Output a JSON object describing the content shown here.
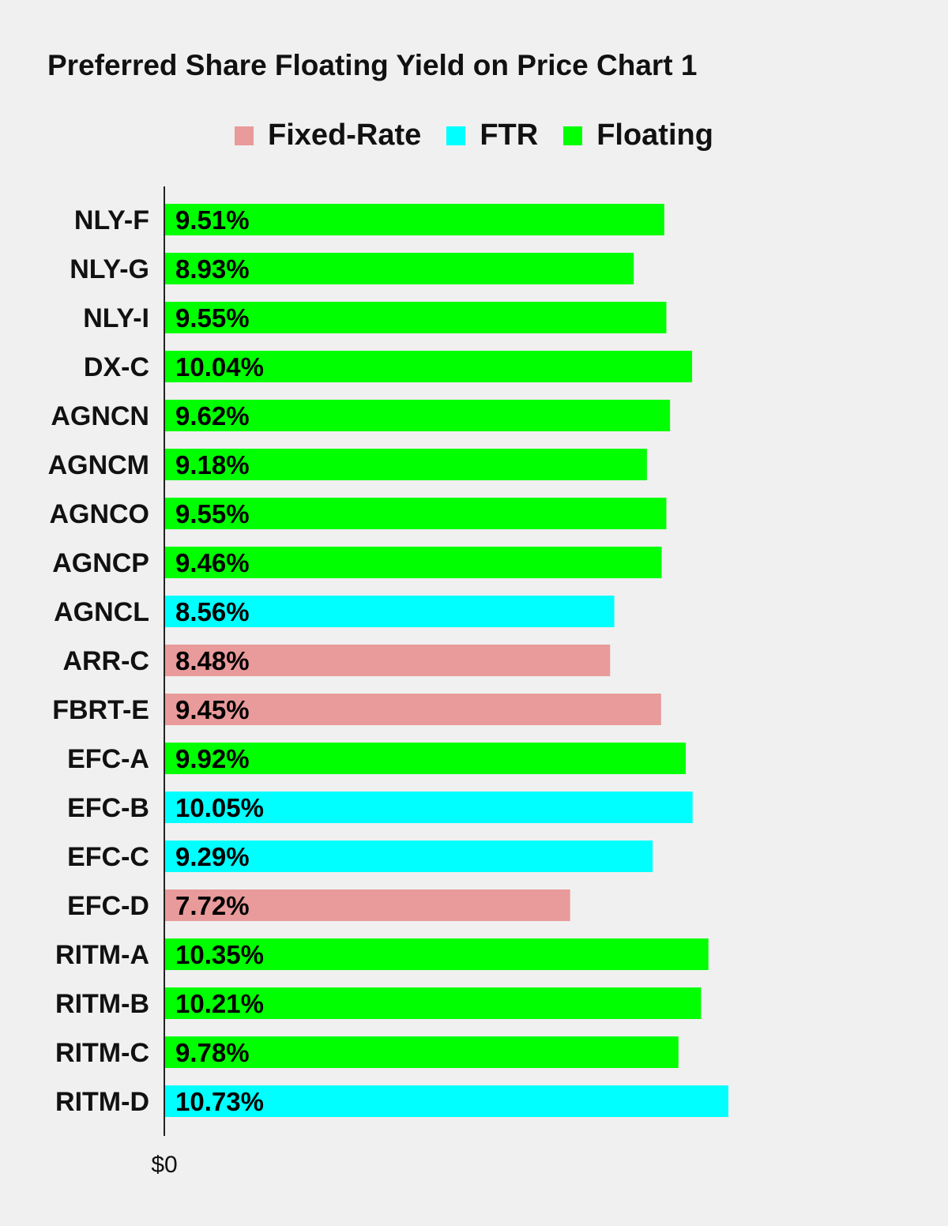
{
  "chart_data": {
    "type": "bar",
    "orientation": "horizontal",
    "title": "Preferred Share Floating Yield on Price Chart 1",
    "legend": {
      "placement": "top-center",
      "entries": [
        {
          "name": "Fixed-Rate",
          "color": "#e99a9a"
        },
        {
          "name": "FTR",
          "color": "#00ffff"
        },
        {
          "name": "Floating",
          "color": "#00ff00"
        }
      ]
    },
    "categories": [
      "NLY-F",
      "NLY-G",
      "NLY-I",
      "DX-C",
      "AGNCN",
      "AGNCM",
      "AGNCO",
      "AGNCP",
      "AGNCL",
      "ARR-C",
      "FBRT-E",
      "EFC-A",
      "EFC-B",
      "EFC-C",
      "EFC-D",
      "RITM-A",
      "RITM-B",
      "RITM-C",
      "RITM-D"
    ],
    "values": [
      9.51,
      8.93,
      9.55,
      10.04,
      9.62,
      9.18,
      9.55,
      9.46,
      8.56,
      8.48,
      9.45,
      9.92,
      10.05,
      9.29,
      7.72,
      10.35,
      10.21,
      9.78,
      10.73
    ],
    "value_labels": [
      "9.51%",
      "8.93%",
      "9.55%",
      "10.04%",
      "9.62%",
      "9.18%",
      "9.55%",
      "9.46%",
      "8.56%",
      "8.48%",
      "9.45%",
      "9.92%",
      "10.05%",
      "9.29%",
      "7.72%",
      "10.35%",
      "10.21%",
      "9.78%",
      "10.73%"
    ],
    "bar_types": [
      "Floating",
      "Floating",
      "Floating",
      "Floating",
      "Floating",
      "Floating",
      "Floating",
      "Floating",
      "FTR",
      "Fixed-Rate",
      "Fixed-Rate",
      "Floating",
      "FTR",
      "FTR",
      "Fixed-Rate",
      "Floating",
      "Floating",
      "Floating",
      "FTR"
    ],
    "x_tick_labels": [
      "$0"
    ],
    "xlim": [
      0,
      10.73
    ],
    "grid": false
  }
}
